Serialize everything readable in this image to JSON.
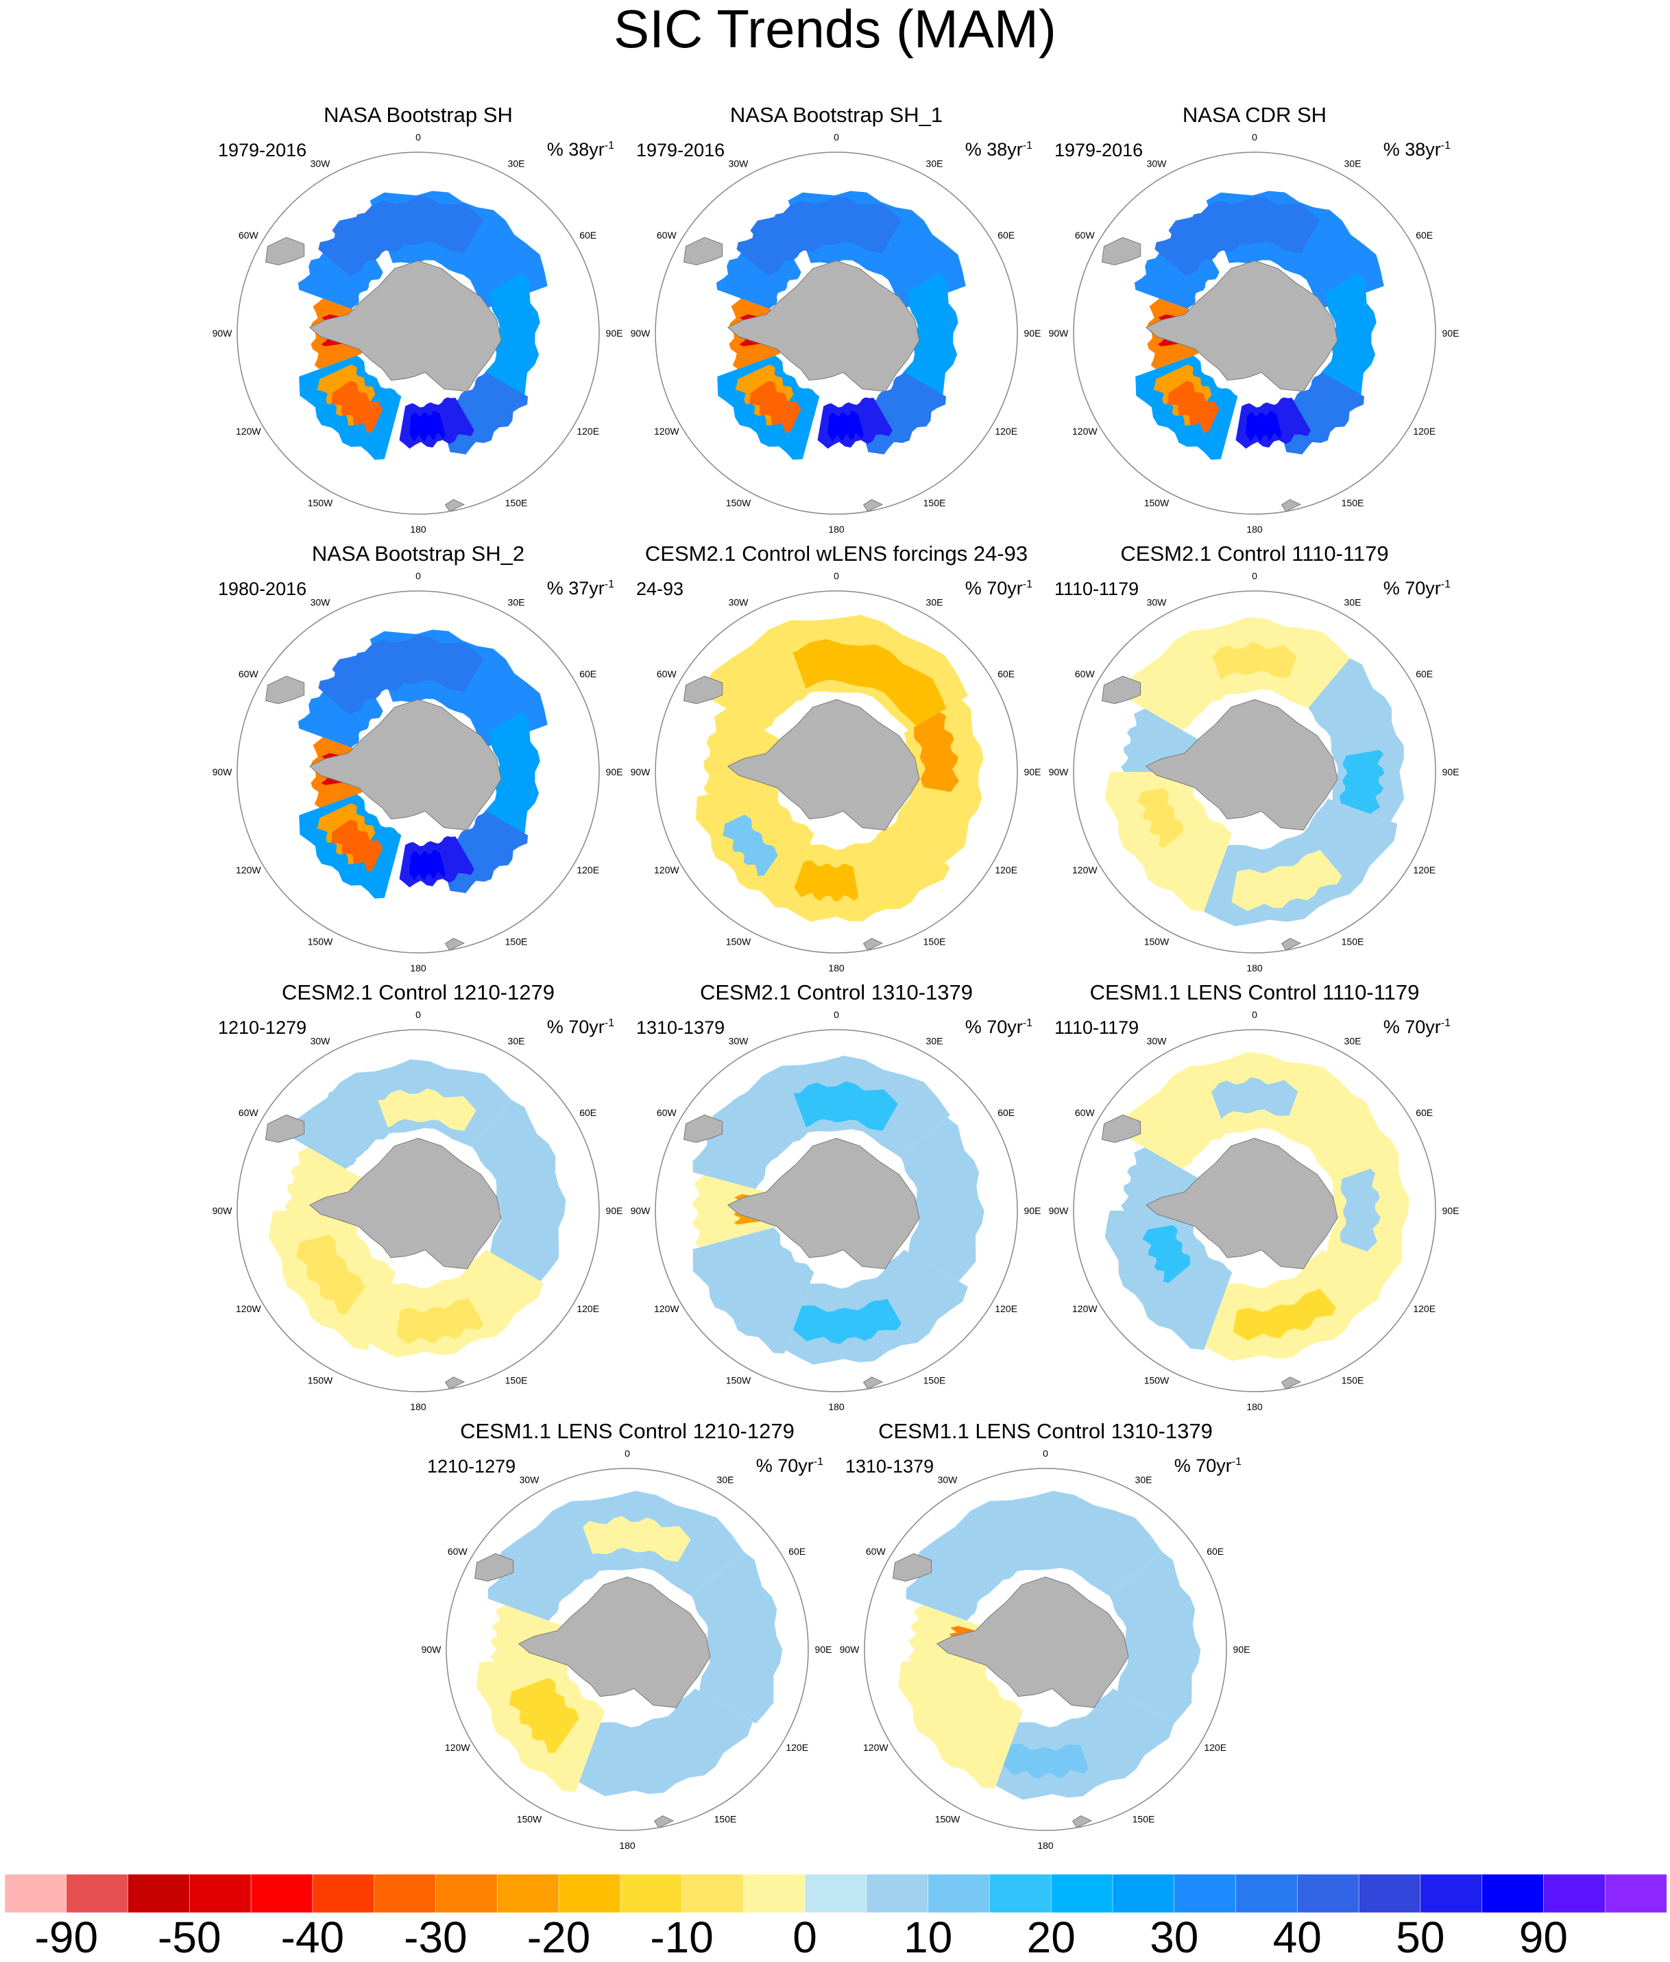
{
  "figure": {
    "title": "SIC Trends (MAM)",
    "land_color": "#b4b4b4",
    "ocean_color": "#ffffff",
    "circle_color": "#888888"
  },
  "chart_data": {
    "type": "polar-stereographic-map",
    "variable": "Sea ice concentration trend",
    "season": "MAM",
    "region": "Southern Hemisphere",
    "longitude_labels": [
      "0",
      "30E",
      "60E",
      "90E",
      "120E",
      "150E",
      "180",
      "150W",
      "120W",
      "90W",
      "60W",
      "30W"
    ],
    "panels": [
      {
        "title": "NASA Bootstrap SH",
        "period": "1979-2016",
        "units": "% 38yr",
        "sup": "-1",
        "pattern": "obs"
      },
      {
        "title": "NASA Bootstrap SH_1",
        "period": "1979-2016",
        "units": "% 38yr",
        "sup": "-1",
        "pattern": "obs"
      },
      {
        "title": "NASA CDR SH",
        "period": "1979-2016",
        "units": "% 38yr",
        "sup": "-1",
        "pattern": "obs"
      },
      {
        "title": "NASA Bootstrap SH_2",
        "period": "1980-2016",
        "units": "% 37yr",
        "sup": "-1",
        "pattern": "obs"
      },
      {
        "title": "CESM2.1 Control wLENS forcings 24-93",
        "period": "24-93",
        "units": "% 70yr",
        "sup": "-1",
        "pattern": "forced"
      },
      {
        "title": "CESM2.1 Control 1110-1179",
        "period": "1110-1179",
        "units": "% 70yr",
        "sup": "-1",
        "pattern": "ctlA"
      },
      {
        "title": "CESM2.1 Control 1210-1279",
        "period": "1210-1279",
        "units": "% 70yr",
        "sup": "-1",
        "pattern": "ctlB"
      },
      {
        "title": "CESM2.1 Control 1310-1379",
        "period": "1310-1379",
        "units": "% 70yr",
        "sup": "-1",
        "pattern": "ctlC"
      },
      {
        "title": "CESM1.1 LENS Control 1110-1179",
        "period": "1110-1179",
        "units": "% 70yr",
        "sup": "-1",
        "pattern": "ctlD"
      },
      {
        "title": "CESM1.1 LENS Control 1210-1279",
        "period": "1210-1279",
        "units": "% 70yr",
        "sup": "-1",
        "pattern": "ctlE"
      },
      {
        "title": "CESM1.1 LENS Control 1310-1379",
        "period": "1310-1379",
        "units": "% 70yr",
        "sup": "-1",
        "pattern": "ctlF"
      }
    ],
    "colorbar": {
      "colors": [
        "#ffb4b4",
        "#e65050",
        "#c80000",
        "#e10000",
        "#ff0000",
        "#ff3c00",
        "#ff6400",
        "#ff8200",
        "#ffa000",
        "#ffbe00",
        "#ffdc32",
        "#ffe664",
        "#fff5a0",
        "#bee6f5",
        "#a0d2f0",
        "#78c8f5",
        "#32c3fa",
        "#00b4ff",
        "#00a0ff",
        "#1e8cff",
        "#2878f0",
        "#3264e6",
        "#3246dc",
        "#1e1ef0",
        "#0000ff",
        "#5a14ff",
        "#8c28ff"
      ],
      "tick_labels": [
        "-90",
        "-50",
        "-40",
        "-30",
        "-20",
        "-10",
        "0",
        "10",
        "20",
        "30",
        "40",
        "50",
        "90"
      ]
    }
  }
}
